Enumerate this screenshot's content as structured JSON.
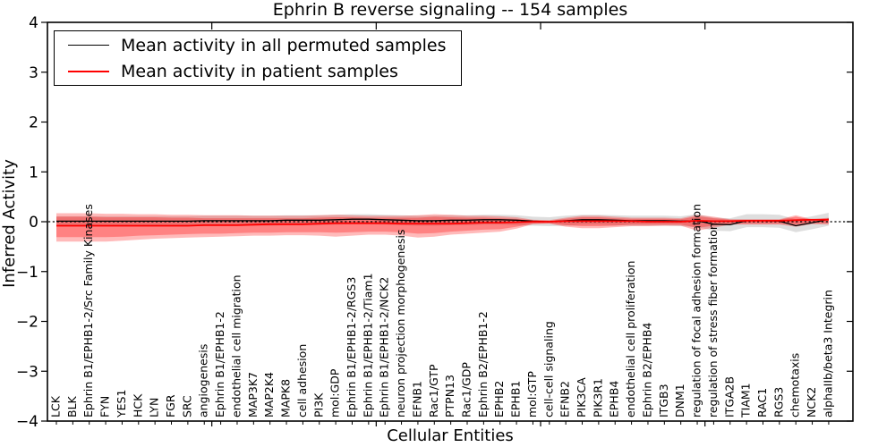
{
  "figure": {
    "title": "Ephrin B reverse signaling -- 154 samples",
    "xlabel": "Cellular Entities",
    "ylabel": "Inferred Activity",
    "background": "#ffffff",
    "frame_color": "#000000"
  },
  "legend": {
    "position": "upper left",
    "items": [
      {
        "label": "Mean activity in all permuted samples",
        "color": "#000000"
      },
      {
        "label": "Mean activity in patient samples",
        "color": "#ff0000"
      }
    ]
  },
  "chart_data": {
    "type": "line",
    "title": "Ephrin B reverse signaling -- 154 samples",
    "xlabel": "Cellular Entities",
    "ylabel": "Inferred Activity",
    "ylim": [
      -4,
      4
    ],
    "xlim": [
      0,
      49
    ],
    "grid": false,
    "legend_position": "upper left",
    "ytick_values": [
      4,
      3,
      2,
      1,
      0,
      -1,
      -2,
      -3,
      -4
    ],
    "ytick_labels": [
      "4",
      "3",
      "2",
      "1",
      "0",
      "−1",
      "−2",
      "−3",
      "−4"
    ],
    "xtick_major_values": [
      10,
      20,
      30,
      40
    ],
    "zero_line": {
      "value": 0,
      "style": "dashed",
      "color": "#000000"
    },
    "categories": [
      "LCK",
      "BLK",
      "Ephrin B1/EPHB1-2/Src Family Kinases",
      "FYN",
      "YES1",
      "HCK",
      "LYN",
      "FGR",
      "SRC",
      "angiogenesis",
      "Ephrin B1/EPHB1-2",
      "endothelial cell migration",
      "MAP3K7",
      "MAP2K4",
      "MAPK8",
      "cell adhesion",
      "PI3K",
      "mol:GDP",
      "Ephrin B1/EPHB1-2/RGS3",
      "Ephrin B1/EPHB1-2/Tiam1",
      "Ephrin B1/EPHB1-2/NCK2",
      "neuron projection morphogenesis",
      "EFNB1",
      "Rac1/GTP",
      "PTPN13",
      "Rac1/GDP",
      "Ephrin B2/EPHB1-2",
      "EPHB2",
      "EPHB1",
      "mol:GTP",
      "cell-cell signaling",
      "EFNB2",
      "PIK3CA",
      "PIK3R1",
      "EPHB4",
      "endothelial cell proliferation",
      "Ephrin B2/EPHB4",
      "ITGB3",
      "DNM1",
      "regulation of focal adhesion formation",
      "regulation of stress fiber formation",
      "ITGA2B",
      "TIAM1",
      "RAC1",
      "RGS3",
      "chemotaxis",
      "NCK2",
      "alphaIIb/beta3 Integrin"
    ],
    "series": [
      {
        "name": "Mean activity in all permuted samples",
        "color": "#000000",
        "width": 1.3,
        "values": [
          0.01,
          0.01,
          0.01,
          0.01,
          0.01,
          0.01,
          0.01,
          0.01,
          0.01,
          0.02,
          0.02,
          0.02,
          0.02,
          0.02,
          0.03,
          0.03,
          0.03,
          0.04,
          0.05,
          0.05,
          0.04,
          0.03,
          0.02,
          0.02,
          0.03,
          0.03,
          0.04,
          0.04,
          0.03,
          0.01,
          0.0,
          0.02,
          0.04,
          0.04,
          0.03,
          0.02,
          0.02,
          0.02,
          0.01,
          0.02,
          -0.05,
          -0.06,
          0.02,
          0.02,
          0.01,
          -0.08,
          -0.02,
          0.05
        ]
      },
      {
        "name": "Mean activity in patient samples",
        "color": "#ff0000",
        "width": 1.8,
        "values": [
          -0.08,
          -0.08,
          -0.08,
          -0.08,
          -0.08,
          -0.08,
          -0.08,
          -0.08,
          -0.08,
          -0.07,
          -0.07,
          -0.07,
          -0.06,
          -0.05,
          -0.05,
          -0.05,
          -0.04,
          -0.03,
          -0.03,
          -0.03,
          -0.03,
          -0.04,
          -0.04,
          -0.04,
          -0.04,
          -0.03,
          -0.02,
          -0.02,
          -0.01,
          0.0,
          0.0,
          0.01,
          0.01,
          0.01,
          0.01,
          0.01,
          0.0,
          0.0,
          0.0,
          0.02,
          0.01,
          0.01,
          0.02,
          0.02,
          0.02,
          0.03,
          0.04,
          0.04
        ]
      }
    ],
    "bands": [
      {
        "name": "permuted-samples-std-band",
        "color": "rgba(0,0,0,0.13)",
        "upper": [
          0.11,
          0.11,
          0.11,
          0.11,
          0.11,
          0.11,
          0.11,
          0.11,
          0.11,
          0.12,
          0.12,
          0.12,
          0.12,
          0.12,
          0.13,
          0.13,
          0.13,
          0.14,
          0.15,
          0.15,
          0.14,
          0.13,
          0.12,
          0.12,
          0.13,
          0.13,
          0.14,
          0.14,
          0.13,
          0.1,
          0.09,
          0.12,
          0.14,
          0.14,
          0.13,
          0.12,
          0.12,
          0.12,
          0.11,
          0.15,
          0.08,
          0.07,
          0.15,
          0.15,
          0.14,
          0.05,
          0.11,
          0.18
        ],
        "lower": [
          -0.09,
          -0.09,
          -0.09,
          -0.09,
          -0.09,
          -0.09,
          -0.09,
          -0.09,
          -0.09,
          -0.08,
          -0.08,
          -0.08,
          -0.08,
          -0.08,
          -0.07,
          -0.07,
          -0.07,
          -0.06,
          -0.05,
          -0.05,
          -0.06,
          -0.07,
          -0.08,
          -0.08,
          -0.07,
          -0.07,
          -0.06,
          -0.06,
          -0.07,
          -0.08,
          -0.09,
          -0.08,
          -0.06,
          -0.06,
          -0.07,
          -0.08,
          -0.08,
          -0.08,
          -0.09,
          -0.11,
          -0.18,
          -0.19,
          -0.11,
          -0.11,
          -0.12,
          -0.21,
          -0.15,
          -0.08
        ]
      },
      {
        "name": "patient-samples-outer-band",
        "color": "rgba(255,0,0,0.27)",
        "upper": [
          0.17,
          0.17,
          0.17,
          0.16,
          0.16,
          0.15,
          0.15,
          0.14,
          0.14,
          0.13,
          0.13,
          0.13,
          0.12,
          0.12,
          0.12,
          0.12,
          0.13,
          0.14,
          0.13,
          0.12,
          0.12,
          0.12,
          0.13,
          0.15,
          0.14,
          0.12,
          0.12,
          0.11,
          0.09,
          0.04,
          0.03,
          0.08,
          0.12,
          0.12,
          0.1,
          0.08,
          0.08,
          0.08,
          0.07,
          0.14,
          0.1,
          0.05,
          0.05,
          0.05,
          0.05,
          0.13,
          0.05,
          0.08
        ],
        "lower": [
          -0.4,
          -0.4,
          -0.4,
          -0.4,
          -0.38,
          -0.36,
          -0.34,
          -0.33,
          -0.32,
          -0.31,
          -0.3,
          -0.29,
          -0.28,
          -0.28,
          -0.27,
          -0.27,
          -0.28,
          -0.3,
          -0.28,
          -0.26,
          -0.26,
          -0.28,
          -0.32,
          -0.3,
          -0.26,
          -0.24,
          -0.22,
          -0.2,
          -0.14,
          -0.05,
          -0.04,
          -0.1,
          -0.13,
          -0.13,
          -0.11,
          -0.09,
          -0.09,
          -0.08,
          -0.08,
          -0.18,
          -0.12,
          -0.06,
          -0.06,
          -0.06,
          -0.06,
          -0.1,
          -0.05,
          -0.06
        ]
      },
      {
        "name": "patient-samples-inner-band",
        "color": "rgba(255,0,0,0.30)",
        "upper": [
          0.1,
          0.1,
          0.1,
          0.09,
          0.09,
          0.09,
          0.09,
          0.08,
          0.08,
          0.07,
          0.07,
          0.07,
          0.07,
          0.07,
          0.07,
          0.07,
          0.08,
          0.09,
          0.09,
          0.08,
          0.08,
          0.08,
          0.08,
          0.1,
          0.09,
          0.08,
          0.08,
          0.07,
          0.06,
          0.03,
          0.02,
          0.06,
          0.09,
          0.09,
          0.07,
          0.06,
          0.06,
          0.06,
          0.05,
          0.11,
          0.07,
          0.04,
          0.04,
          0.04,
          0.04,
          0.1,
          0.04,
          0.07
        ],
        "lower": [
          -0.31,
          -0.31,
          -0.31,
          -0.31,
          -0.3,
          -0.28,
          -0.27,
          -0.26,
          -0.25,
          -0.24,
          -0.24,
          -0.23,
          -0.22,
          -0.22,
          -0.21,
          -0.21,
          -0.21,
          -0.22,
          -0.21,
          -0.2,
          -0.2,
          -0.21,
          -0.24,
          -0.23,
          -0.2,
          -0.18,
          -0.16,
          -0.15,
          -0.1,
          -0.04,
          -0.03,
          -0.07,
          -0.09,
          -0.09,
          -0.08,
          -0.06,
          -0.06,
          -0.06,
          -0.06,
          -0.12,
          -0.08,
          -0.04,
          -0.04,
          -0.04,
          -0.04,
          -0.06,
          -0.03,
          -0.03
        ]
      }
    ]
  }
}
